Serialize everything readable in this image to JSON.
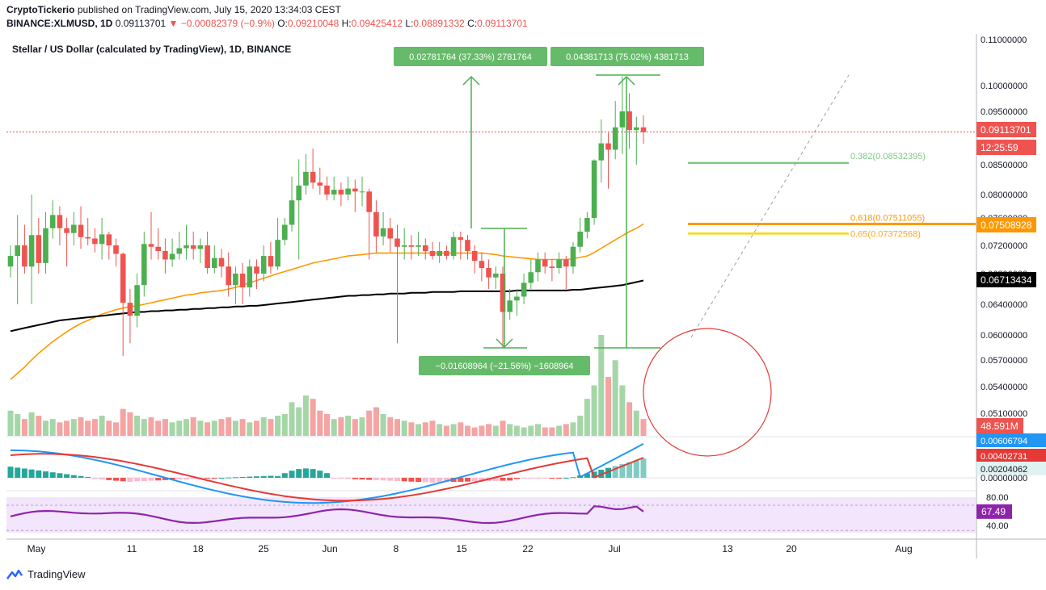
{
  "header": {
    "publisher": "CryptoTickerio",
    "published_text": "published on TradingView.com, July 15, 2020 13:34:03 CEST",
    "symbol": "BINANCE:XLMUSD, 1D",
    "last": "0.09113701",
    "change": "−0.00082379 (−0.9%)",
    "o_label": "O:",
    "o": "0.09210048",
    "h_label": "H:",
    "h": "0.09425412",
    "l_label": "L:",
    "l": "0.08891332",
    "c_label": "C:",
    "c": "0.09113701"
  },
  "footer": {
    "brand": "TradingView"
  },
  "chart_data": {
    "type": "candlestick",
    "title": "Stellar / US Dollar (calculated by TradingView), 1D, BINANCE",
    "price_axis": {
      "ticks": [
        "0.11000000",
        "0.10000000",
        "0.09500000",
        "0.08500000",
        "0.08000000",
        "0.07600000",
        "0.07200000",
        "0.06800000",
        "0.06400000",
        "0.06000000",
        "0.05700000",
        "0.05400000",
        "0.05100000"
      ],
      "markers": [
        {
          "label": "0.09113701",
          "value": 0.09113701,
          "color": "#ef5350"
        },
        {
          "label": "12:25:59",
          "value": 0.0888,
          "color": "#ef5350"
        },
        {
          "label": "0.07508928",
          "value": 0.07508928,
          "color": "#ff9800"
        },
        {
          "label": "0.06713434",
          "value": 0.06713434,
          "color": "#000000"
        },
        {
          "label": "48.591M",
          "value": 0.0495,
          "color": "#ef5350"
        }
      ]
    },
    "date_axis": [
      "May",
      "11",
      "18",
      "25",
      "Jun",
      "8",
      "15",
      "22",
      "Jul",
      "13",
      "20",
      "Aug"
    ],
    "candles": [
      [
        0.069,
        0.0705,
        0.072,
        0.0675
      ],
      [
        0.0705,
        0.072,
        0.0765,
        0.064
      ],
      [
        0.072,
        0.069,
        0.075,
        0.068
      ],
      [
        0.069,
        0.0735,
        0.08,
        0.064
      ],
      [
        0.0735,
        0.0695,
        0.076,
        0.068
      ],
      [
        0.0695,
        0.0745,
        0.077,
        0.068
      ],
      [
        0.0745,
        0.0765,
        0.079,
        0.073
      ],
      [
        0.0765,
        0.0745,
        0.078,
        0.072
      ],
      [
        0.0745,
        0.0738,
        0.076,
        0.069
      ],
      [
        0.0738,
        0.075,
        0.077,
        0.072
      ],
      [
        0.075,
        0.0732,
        0.078,
        0.0715
      ],
      [
        0.0732,
        0.073,
        0.076,
        0.072
      ],
      [
        0.073,
        0.0722,
        0.0745,
        0.071
      ],
      [
        0.0722,
        0.0736,
        0.076,
        0.07
      ],
      [
        0.0736,
        0.072,
        0.074,
        0.07
      ],
      [
        0.072,
        0.0708,
        0.073,
        0.069
      ],
      [
        0.0708,
        0.0642,
        0.071,
        0.0575
      ],
      [
        0.0642,
        0.0625,
        0.066,
        0.059
      ],
      [
        0.0625,
        0.0665,
        0.068,
        0.061
      ],
      [
        0.0665,
        0.0722,
        0.074,
        0.065
      ],
      [
        0.0722,
        0.0718,
        0.077,
        0.07
      ],
      [
        0.0718,
        0.0712,
        0.0745,
        0.07
      ],
      [
        0.0712,
        0.07,
        0.073,
        0.068
      ],
      [
        0.07,
        0.0708,
        0.073,
        0.069
      ],
      [
        0.0708,
        0.0716,
        0.074,
        0.07
      ],
      [
        0.0716,
        0.072,
        0.075,
        0.07
      ],
      [
        0.072,
        0.0715,
        0.074,
        0.07
      ],
      [
        0.0715,
        0.072,
        0.073,
        0.0695
      ],
      [
        0.072,
        0.0688,
        0.074,
        0.068
      ],
      [
        0.0688,
        0.0702,
        0.072,
        0.068
      ],
      [
        0.0702,
        0.069,
        0.0715,
        0.0675
      ],
      [
        0.069,
        0.0665,
        0.071,
        0.065
      ],
      [
        0.0665,
        0.068,
        0.069,
        0.064
      ],
      [
        0.068,
        0.0662,
        0.0695,
        0.064
      ],
      [
        0.0662,
        0.069,
        0.07,
        0.065
      ],
      [
        0.069,
        0.068,
        0.07,
        0.066
      ],
      [
        0.068,
        0.0705,
        0.072,
        0.067
      ],
      [
        0.0705,
        0.069,
        0.0725,
        0.068
      ],
      [
        0.069,
        0.0728,
        0.076,
        0.0685
      ],
      [
        0.0728,
        0.075,
        0.076,
        0.072
      ],
      [
        0.075,
        0.079,
        0.083,
        0.074
      ],
      [
        0.079,
        0.0815,
        0.086,
        0.07
      ],
      [
        0.0815,
        0.0838,
        0.087,
        0.08
      ],
      [
        0.0838,
        0.082,
        0.088,
        0.081
      ],
      [
        0.082,
        0.0815,
        0.0845,
        0.08
      ],
      [
        0.0815,
        0.08,
        0.083,
        0.079
      ],
      [
        0.08,
        0.0808,
        0.083,
        0.079
      ],
      [
        0.0808,
        0.08,
        0.082,
        0.078
      ],
      [
        0.08,
        0.081,
        0.083,
        0.079
      ],
      [
        0.081,
        0.0805,
        0.0825,
        0.077
      ],
      [
        0.0805,
        0.0805,
        0.083,
        0.078
      ],
      [
        0.0805,
        0.077,
        0.081,
        0.07
      ],
      [
        0.077,
        0.0733,
        0.079,
        0.071
      ],
      [
        0.0733,
        0.0745,
        0.077,
        0.072
      ],
      [
        0.0745,
        0.073,
        0.076,
        0.071
      ],
      [
        0.073,
        0.0718,
        0.075,
        0.059
      ],
      [
        0.0718,
        0.072,
        0.0745,
        0.07
      ],
      [
        0.072,
        0.0718,
        0.0735,
        0.07
      ],
      [
        0.0718,
        0.072,
        0.074,
        0.0705
      ],
      [
        0.072,
        0.0712,
        0.073,
        0.07
      ],
      [
        0.0712,
        0.0705,
        0.0725,
        0.07
      ],
      [
        0.0705,
        0.0712,
        0.0725,
        0.0695
      ],
      [
        0.0712,
        0.0705,
        0.072,
        0.07
      ],
      [
        0.0705,
        0.0732,
        0.074,
        0.07
      ],
      [
        0.0732,
        0.0728,
        0.074,
        0.07
      ],
      [
        0.0728,
        0.0712,
        0.0735,
        0.07
      ],
      [
        0.0712,
        0.0698,
        0.072,
        0.068
      ],
      [
        0.0698,
        0.0688,
        0.071,
        0.067
      ],
      [
        0.0688,
        0.0675,
        0.07,
        0.066
      ],
      [
        0.0675,
        0.068,
        0.069,
        0.066
      ],
      [
        0.068,
        0.063,
        0.069,
        0.0585
      ],
      [
        0.063,
        0.0645,
        0.066,
        0.062
      ],
      [
        0.0645,
        0.065,
        0.066,
        0.0625
      ],
      [
        0.065,
        0.0668,
        0.068,
        0.064
      ],
      [
        0.0668,
        0.0682,
        0.07,
        0.066
      ],
      [
        0.0682,
        0.07,
        0.071,
        0.067
      ],
      [
        0.07,
        0.069,
        0.071,
        0.068
      ],
      [
        0.069,
        0.0688,
        0.07,
        0.067
      ],
      [
        0.0688,
        0.07,
        0.071,
        0.068
      ],
      [
        0.07,
        0.069,
        0.0705,
        0.066
      ],
      [
        0.069,
        0.0718,
        0.0725,
        0.068
      ],
      [
        0.0718,
        0.074,
        0.076,
        0.071
      ],
      [
        0.074,
        0.076,
        0.077,
        0.073
      ],
      [
        0.076,
        0.0858,
        0.086,
        0.075
      ],
      [
        0.0858,
        0.089,
        0.0935,
        0.082
      ],
      [
        0.089,
        0.0878,
        0.091,
        0.081
      ],
      [
        0.0878,
        0.092,
        0.097,
        0.086
      ],
      [
        0.092,
        0.095,
        0.102,
        0.087
      ],
      [
        0.095,
        0.0915,
        0.0985,
        0.088
      ],
      [
        0.0915,
        0.092,
        0.094,
        0.085
      ],
      [
        0.092,
        0.0911,
        0.0943,
        0.0889
      ]
    ],
    "moving_averages": [
      {
        "name": "MA 50",
        "color": "#ff9800",
        "values": [
          0.0548,
          0.0555,
          0.0562,
          0.057,
          0.0578,
          0.0585,
          0.0592,
          0.0598,
          0.0604,
          0.061,
          0.0615,
          0.0619,
          0.0623,
          0.0627,
          0.063,
          0.0633,
          0.0635,
          0.0637,
          0.0638,
          0.064,
          0.0642,
          0.0644,
          0.0646,
          0.0648,
          0.065,
          0.0652,
          0.0653,
          0.0655,
          0.0656,
          0.0657,
          0.0658,
          0.066,
          0.0662,
          0.0665,
          0.0668,
          0.0671,
          0.0674,
          0.0677,
          0.068,
          0.0683,
          0.0686,
          0.0689,
          0.0692,
          0.0695,
          0.0697,
          0.0699,
          0.0701,
          0.0703,
          0.0705,
          0.0706,
          0.0707,
          0.0708,
          0.0709,
          0.0709,
          0.0709,
          0.0709,
          0.0709,
          0.0709,
          0.0709,
          0.0709,
          0.0709,
          0.0709,
          0.0709,
          0.0709,
          0.0709,
          0.0709,
          0.0709,
          0.0709,
          0.0708,
          0.0707,
          0.0705,
          0.0704,
          0.0703,
          0.0702,
          0.0701,
          0.07,
          0.07,
          0.07,
          0.07,
          0.07,
          0.0701,
          0.0703,
          0.0705,
          0.071,
          0.0716,
          0.0722,
          0.0728,
          0.0734,
          0.074,
          0.0745,
          0.0751
        ]
      },
      {
        "name": "MA 200",
        "color": "#000000",
        "values": [
          0.0605,
          0.0607,
          0.0609,
          0.0611,
          0.0613,
          0.0615,
          0.0617,
          0.0619,
          0.062,
          0.0621,
          0.0622,
          0.0623,
          0.0624,
          0.0625,
          0.0626,
          0.0627,
          0.0628,
          0.0629,
          0.063,
          0.063,
          0.0631,
          0.0631,
          0.0632,
          0.0632,
          0.0633,
          0.0633,
          0.0634,
          0.0634,
          0.0635,
          0.0635,
          0.0636,
          0.0636,
          0.0637,
          0.0637,
          0.0638,
          0.0638,
          0.0639,
          0.064,
          0.0641,
          0.0642,
          0.0643,
          0.0644,
          0.0645,
          0.0646,
          0.0647,
          0.0648,
          0.0649,
          0.065,
          0.0651,
          0.0651,
          0.0652,
          0.0652,
          0.0653,
          0.0653,
          0.0654,
          0.0654,
          0.0654,
          0.0655,
          0.0655,
          0.0655,
          0.0656,
          0.0656,
          0.0656,
          0.0656,
          0.0657,
          0.0657,
          0.0657,
          0.0657,
          0.0657,
          0.0657,
          0.0657,
          0.0657,
          0.0658,
          0.0658,
          0.0658,
          0.0658,
          0.0658,
          0.0658,
          0.0658,
          0.0658,
          0.0659,
          0.0659,
          0.066,
          0.0661,
          0.0662,
          0.0663,
          0.0664,
          0.0665,
          0.0667,
          0.0669,
          0.0671
        ]
      }
    ],
    "fibonacci": [
      {
        "label": "0.382(0.08532395)",
        "value": 0.08532395,
        "color": "#66bb6a"
      },
      {
        "label": "0.618(0.07511055)",
        "value": 0.07511055,
        "color": "#ff9800"
      },
      {
        "label": "0.65(0.07372568)",
        "value": 0.07372568,
        "color": "#ffd600"
      }
    ],
    "measurements": [
      {
        "label": "0.02781764 (37.33%) 2781764"
      },
      {
        "label": "0.04381713 (75.02%) 4381713"
      },
      {
        "label": "−0.01608964 (−21.56%) −1608964"
      }
    ],
    "volume": {
      "label": "48.591M",
      "values": [
        30,
        26,
        20,
        28,
        24,
        18,
        20,
        16,
        18,
        20,
        22,
        18,
        20,
        24,
        18,
        16,
        32,
        28,
        24,
        20,
        22,
        18,
        20,
        16,
        18,
        20,
        22,
        18,
        16,
        18,
        20,
        22,
        18,
        20,
        16,
        18,
        22,
        20,
        24,
        26,
        40,
        34,
        48,
        44,
        30,
        26,
        20,
        22,
        24,
        20,
        22,
        30,
        34,
        26,
        22,
        20,
        18,
        16,
        14,
        16,
        18,
        14,
        12,
        14,
        16,
        12,
        10,
        12,
        14,
        12,
        18,
        14,
        12,
        10,
        12,
        14,
        10,
        10,
        12,
        14,
        16,
        24,
        44,
        60,
        120,
        70,
        90,
        60,
        40,
        30,
        20
      ]
    },
    "macd": {
      "ticks": [
        "0.00606794",
        "0.00402731",
        "0.00204062",
        "0.00000000"
      ],
      "values_labels": [
        "0.00606794",
        "0.00402731",
        "0.00204062"
      ]
    },
    "rsi": {
      "ticks": [
        "80.00",
        "40.00"
      ],
      "value_label": "67.49",
      "value": 67.49
    }
  }
}
